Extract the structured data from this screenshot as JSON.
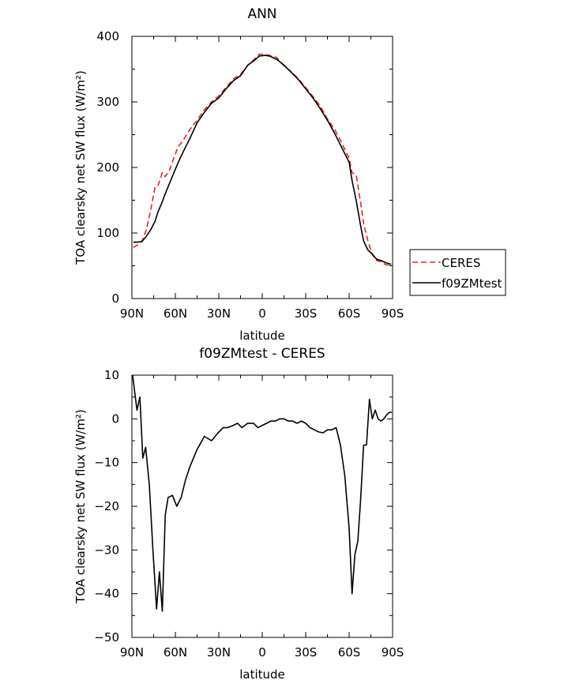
{
  "chart_data": [
    {
      "type": "line",
      "title": "ANN",
      "xlabel": "latitude",
      "ylabel": "TOA clearsky net SW flux (W/m²)",
      "x_ticks": [
        {
          "value": 90,
          "label": "90N"
        },
        {
          "value": 60,
          "label": "60N"
        },
        {
          "value": 30,
          "label": "30N"
        },
        {
          "value": 0,
          "label": "0"
        },
        {
          "value": -30,
          "label": "30S"
        },
        {
          "value": -60,
          "label": "60S"
        },
        {
          "value": -90,
          "label": "90S"
        }
      ],
      "xlim": [
        90,
        -90
      ],
      "ylim": [
        0,
        400
      ],
      "y_ticks": [
        0,
        100,
        200,
        300,
        400
      ],
      "legend_position": "right",
      "series": [
        {
          "name": "CERES",
          "color": "#e8221e",
          "dash": "dashed",
          "x": [
            89,
            86,
            83,
            80,
            77,
            74,
            72,
            69,
            67,
            64,
            61,
            58,
            55,
            50,
            45,
            40,
            35,
            30,
            25,
            20,
            15,
            10,
            5,
            2,
            -2,
            -5,
            -10,
            -15,
            -20,
            -25,
            -30,
            -35,
            -40,
            -45,
            -50,
            -55,
            -60,
            -62,
            -65,
            -68,
            -70,
            -73,
            -76,
            -79,
            -82,
            -85,
            -89
          ],
          "values": [
            78,
            82,
            88,
            105,
            135,
            170,
            172,
            192,
            186,
            196,
            215,
            232,
            240,
            258,
            272,
            288,
            300,
            309,
            322,
            335,
            342,
            356,
            366,
            373,
            372,
            371,
            368,
            355,
            346,
            335,
            322,
            308,
            294,
            274,
            258,
            237,
            214,
            192,
            187,
            145,
            115,
            88,
            67,
            58,
            56,
            52,
            50
          ]
        },
        {
          "name": "f09ZMtest",
          "color": "#000000",
          "dash": "solid",
          "x": [
            89,
            86,
            83,
            80,
            77,
            74,
            72,
            69,
            67,
            64,
            61,
            58,
            55,
            50,
            45,
            40,
            35,
            30,
            25,
            20,
            15,
            10,
            5,
            2,
            -2,
            -5,
            -10,
            -15,
            -20,
            -25,
            -30,
            -35,
            -40,
            -45,
            -50,
            -55,
            -60,
            -62,
            -65,
            -68,
            -70,
            -73,
            -76,
            -79,
            -82,
            -85,
            -89
          ],
          "values": [
            86,
            86,
            87,
            95,
            105,
            118,
            132,
            148,
            160,
            176,
            192,
            208,
            222,
            244,
            268,
            284,
            298,
            306,
            320,
            332,
            340,
            356,
            364,
            370,
            371,
            370,
            365,
            356,
            345,
            334,
            320,
            306,
            290,
            272,
            252,
            230,
            208,
            180,
            148,
            110,
            88,
            74,
            68,
            60,
            58,
            55,
            52
          ]
        }
      ]
    },
    {
      "type": "line",
      "title": "f09ZMtest - CERES",
      "xlabel": "latitude",
      "ylabel": "TOA clearsky net SW flux (W/m²)",
      "x_ticks": [
        {
          "value": 90,
          "label": "90N"
        },
        {
          "value": 60,
          "label": "60N"
        },
        {
          "value": 30,
          "label": "30N"
        },
        {
          "value": 0,
          "label": "0"
        },
        {
          "value": -30,
          "label": "30S"
        },
        {
          "value": -60,
          "label": "60S"
        },
        {
          "value": -90,
          "label": "90S"
        }
      ],
      "xlim": [
        90,
        -90
      ],
      "ylim": [
        -50,
        10
      ],
      "y_ticks": [
        -50,
        -40,
        -30,
        -20,
        -10,
        0,
        10
      ],
      "series": [
        {
          "color": "#000000",
          "dash": "solid",
          "x": [
            89.5,
            86.5,
            84.5,
            82.5,
            80.5,
            78,
            75.5,
            73,
            71,
            69,
            67,
            65,
            62,
            59,
            56,
            53,
            50,
            45,
            40,
            35,
            30,
            27,
            24,
            20,
            17,
            14,
            10,
            6,
            3,
            0,
            -3,
            -6,
            -9,
            -12,
            -15,
            -18,
            -21,
            -24,
            -27,
            -30,
            -33,
            -36,
            -39,
            -42,
            -45,
            -48,
            -51,
            -54,
            -57,
            -60,
            -62,
            -64,
            -66,
            -68,
            -70,
            -72,
            -74,
            -76,
            -78,
            -80,
            -82,
            -84,
            -86,
            -88,
            -89.5
          ],
          "values": [
            10,
            2,
            5,
            -9,
            -6.5,
            -15,
            -30,
            -43.5,
            -35,
            -44,
            -22,
            -18,
            -17.5,
            -20,
            -18,
            -14,
            -11,
            -7,
            -4,
            -5,
            -3,
            -2,
            -2,
            -1.5,
            -1,
            -2,
            -1,
            -1,
            -2,
            -1.5,
            -1,
            -0.5,
            -0.5,
            0,
            0,
            -0.5,
            -0.5,
            -1,
            -0.5,
            -1,
            -2,
            -2.5,
            -3,
            -3.2,
            -2.5,
            -2.5,
            -2,
            -6,
            -13,
            -25,
            -40,
            -31,
            -28,
            -18,
            -6,
            -6,
            4.5,
            0,
            2,
            0,
            -0.5,
            0,
            1,
            1.5,
            1.5
          ]
        }
      ]
    }
  ]
}
